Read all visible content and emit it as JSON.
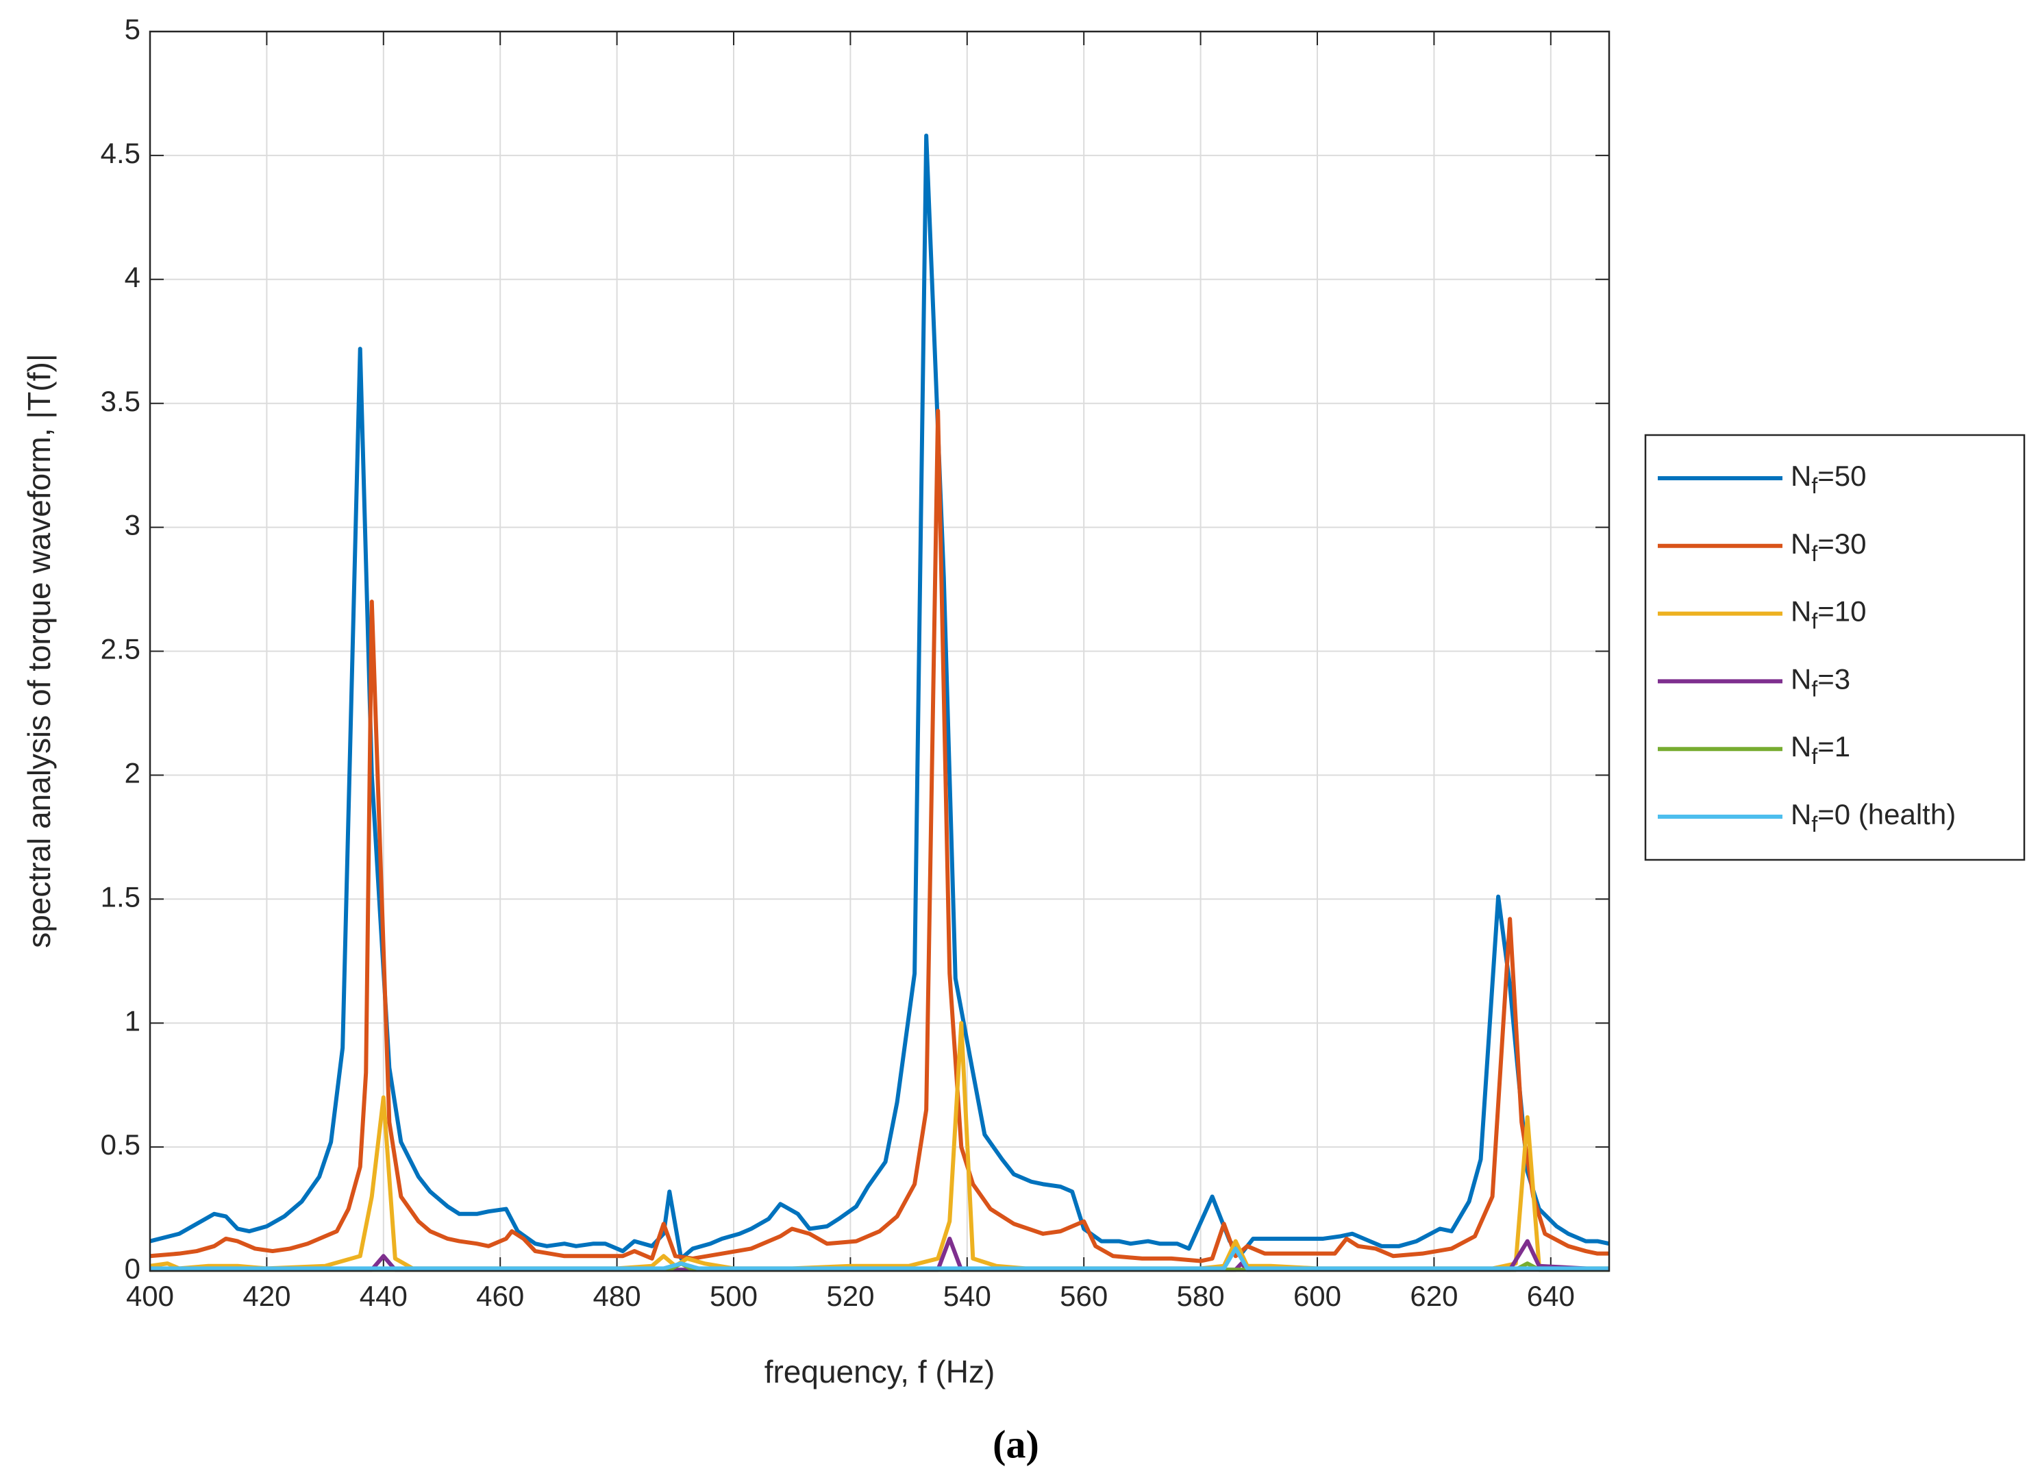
{
  "chart_data": {
    "type": "line",
    "xlabel": "frequency, f (Hz)",
    "ylabel": "spectral analysis of torque waveform, |T(f)|",
    "caption": "(a)",
    "xlim": [
      400,
      650
    ],
    "xticks": [
      400,
      420,
      440,
      460,
      480,
      500,
      520,
      540,
      560,
      580,
      600,
      620,
      640
    ],
    "ylim": [
      0,
      5
    ],
    "yticks": [
      0,
      0.5,
      1,
      1.5,
      2,
      2.5,
      3,
      3.5,
      4,
      4.5,
      5
    ],
    "grid": true,
    "legend": "outside-right",
    "series": [
      {
        "name": "Nf=50",
        "color": "#0072BD",
        "x": [
          400,
          405,
          408,
          411,
          413,
          415,
          417,
          420,
          423,
          426,
          429,
          431,
          433,
          436,
          438,
          441,
          443,
          446,
          448,
          451,
          453,
          456,
          458,
          461,
          463,
          466,
          468,
          471,
          473,
          476,
          478,
          481,
          483,
          486,
          488,
          489,
          491,
          493,
          496,
          498,
          501,
          503,
          506,
          508,
          511,
          513,
          516,
          518,
          521,
          523,
          526,
          528,
          531,
          533,
          536,
          538,
          541,
          543,
          546,
          548,
          551,
          553,
          556,
          558,
          560,
          563,
          566,
          568,
          571,
          573,
          576,
          578,
          582,
          585,
          587,
          589,
          592,
          601,
          604,
          606,
          609,
          611,
          614,
          617,
          621,
          623,
          626,
          628,
          631,
          633,
          636,
          638,
          641,
          643,
          646,
          648,
          650
        ],
        "values": [
          0.12,
          0.15,
          0.19,
          0.23,
          0.22,
          0.17,
          0.16,
          0.18,
          0.22,
          0.28,
          0.38,
          0.52,
          0.9,
          3.72,
          2.0,
          0.82,
          0.52,
          0.38,
          0.32,
          0.26,
          0.23,
          0.23,
          0.24,
          0.25,
          0.16,
          0.11,
          0.1,
          0.11,
          0.1,
          0.11,
          0.11,
          0.08,
          0.12,
          0.1,
          0.15,
          0.32,
          0.05,
          0.09,
          0.11,
          0.13,
          0.15,
          0.17,
          0.21,
          0.27,
          0.23,
          0.17,
          0.18,
          0.21,
          0.26,
          0.34,
          0.44,
          0.68,
          1.2,
          4.58,
          2.8,
          1.18,
          0.8,
          0.55,
          0.45,
          0.39,
          0.36,
          0.35,
          0.34,
          0.32,
          0.17,
          0.12,
          0.12,
          0.11,
          0.12,
          0.11,
          0.11,
          0.09,
          0.3,
          0.12,
          0.07,
          0.13,
          0.13,
          0.13,
          0.14,
          0.15,
          0.12,
          0.1,
          0.1,
          0.12,
          0.17,
          0.16,
          0.28,
          0.45,
          1.51,
          1.15,
          0.4,
          0.25,
          0.18,
          0.15,
          0.12,
          0.12,
          0.11
        ]
      },
      {
        "name": "Nf=30",
        "color": "#D95319",
        "x": [
          400,
          405,
          408,
          411,
          413,
          415,
          418,
          421,
          424,
          427,
          430,
          432,
          434,
          436,
          437,
          438,
          440,
          441,
          443,
          446,
          448,
          451,
          453,
          456,
          458,
          461,
          462,
          464,
          466,
          471,
          476,
          481,
          483,
          486,
          488,
          490,
          493,
          498,
          503,
          508,
          510,
          513,
          516,
          521,
          525,
          528,
          531,
          533,
          535,
          537,
          539,
          541,
          544,
          548,
          553,
          556,
          560,
          562,
          565,
          570,
          575,
          580,
          582,
          584,
          586,
          588,
          591,
          596,
          601,
          603,
          605,
          607,
          610,
          613,
          618,
          623,
          627,
          630,
          633,
          635,
          637,
          639,
          643,
          646,
          648,
          650
        ],
        "values": [
          0.06,
          0.07,
          0.08,
          0.1,
          0.13,
          0.12,
          0.09,
          0.08,
          0.09,
          0.11,
          0.14,
          0.16,
          0.25,
          0.42,
          0.8,
          2.7,
          1.3,
          0.6,
          0.3,
          0.2,
          0.16,
          0.13,
          0.12,
          0.11,
          0.1,
          0.13,
          0.16,
          0.13,
          0.08,
          0.06,
          0.06,
          0.06,
          0.08,
          0.05,
          0.19,
          0.06,
          0.05,
          0.07,
          0.09,
          0.14,
          0.17,
          0.15,
          0.11,
          0.12,
          0.16,
          0.22,
          0.35,
          0.65,
          3.47,
          1.2,
          0.5,
          0.35,
          0.25,
          0.19,
          0.15,
          0.16,
          0.2,
          0.1,
          0.06,
          0.05,
          0.05,
          0.04,
          0.05,
          0.19,
          0.06,
          0.1,
          0.07,
          0.07,
          0.07,
          0.07,
          0.13,
          0.1,
          0.09,
          0.06,
          0.07,
          0.09,
          0.14,
          0.3,
          1.42,
          0.6,
          0.3,
          0.15,
          0.1,
          0.08,
          0.07,
          0.07
        ]
      },
      {
        "name": "Nf=10",
        "color": "#EDB120",
        "x": [
          400,
          403,
          405,
          410,
          415,
          420,
          430,
          436,
          438,
          440,
          442,
          445,
          450,
          460,
          470,
          480,
          486,
          488,
          490,
          492,
          495,
          500,
          510,
          520,
          530,
          535,
          537,
          539,
          541,
          545,
          550,
          560,
          570,
          580,
          584,
          586,
          588,
          592,
          600,
          610,
          620,
          630,
          634,
          636,
          638,
          640,
          650
        ],
        "values": [
          0.02,
          0.03,
          0.01,
          0.02,
          0.02,
          0.01,
          0.02,
          0.06,
          0.3,
          0.7,
          0.05,
          0.01,
          0.01,
          0.01,
          0.01,
          0.01,
          0.02,
          0.06,
          0.02,
          0.05,
          0.03,
          0.01,
          0.01,
          0.02,
          0.02,
          0.05,
          0.2,
          1.0,
          0.05,
          0.02,
          0.01,
          0.01,
          0.01,
          0.01,
          0.02,
          0.12,
          0.02,
          0.02,
          0.01,
          0.01,
          0.01,
          0.01,
          0.03,
          0.62,
          0.02,
          0.01,
          0.01
        ]
      },
      {
        "name": "Nf=3",
        "color": "#7E2F8E",
        "x": [
          400,
          438,
          440,
          442,
          535,
          537,
          539,
          586,
          587,
          588,
          633,
          636,
          638,
          650
        ],
        "values": [
          0.005,
          0.005,
          0.06,
          0.005,
          0.005,
          0.13,
          0.005,
          0.005,
          0.03,
          0.005,
          0.005,
          0.12,
          0.02,
          0.005
        ]
      },
      {
        "name": "Nf=1",
        "color": "#77AC30",
        "x": [
          400,
          489,
          491,
          493,
          634,
          636,
          638,
          650
        ],
        "values": [
          0.005,
          0.005,
          0.03,
          0.005,
          0.005,
          0.03,
          0.005,
          0.005
        ]
      },
      {
        "name": "Nf=0 (health)",
        "color": "#4DBEEE",
        "x": [
          400,
          440,
          488,
          491,
          494,
          584,
          586,
          588,
          650
        ],
        "values": [
          0.01,
          0.01,
          0.01,
          0.03,
          0.01,
          0.01,
          0.09,
          0.01,
          0.01
        ]
      }
    ]
  }
}
